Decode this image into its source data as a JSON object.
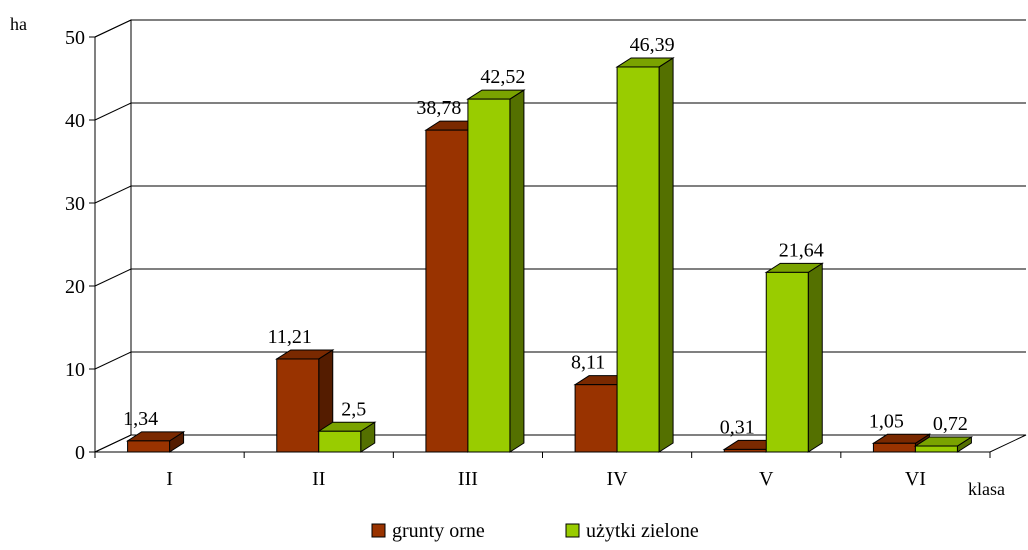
{
  "chart_data": {
    "type": "bar",
    "ylabel": "ha",
    "xlabel": "klasa",
    "ylim": [
      0,
      50
    ],
    "yticks": [
      0,
      10,
      20,
      30,
      40,
      50
    ],
    "categories": [
      "I",
      "II",
      "III",
      "IV",
      "V",
      "VI"
    ],
    "series": [
      {
        "name": "grunty orne",
        "values": [
          1.34,
          11.21,
          38.78,
          8.11,
          0.31,
          1.05
        ],
        "labels": [
          "1,34",
          "11,21",
          "38,78",
          "8,11",
          "0,31",
          "1,05"
        ],
        "color": "#993300"
      },
      {
        "name": "użytki zielone",
        "values": [
          0,
          2.5,
          42.52,
          46.39,
          21.64,
          0.72
        ],
        "labels": [
          "",
          "2,5",
          "42,52",
          "46,39",
          "21,64",
          "0,72"
        ],
        "color": "#99CC00"
      }
    ],
    "grid": true,
    "legend_position": "bottom"
  }
}
